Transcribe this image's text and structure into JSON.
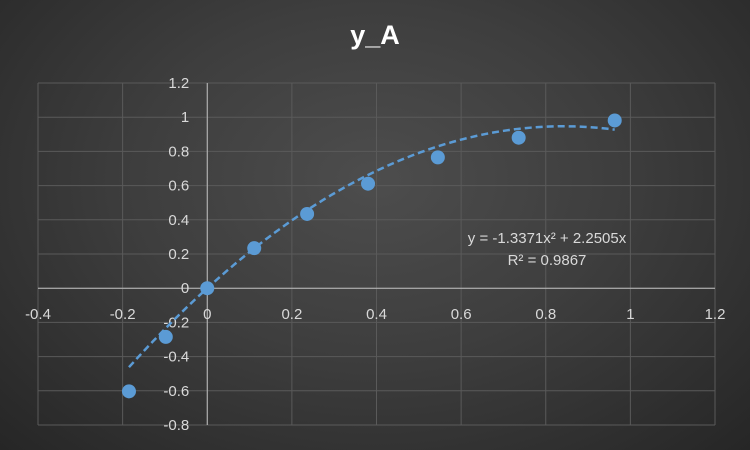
{
  "chart_data": {
    "type": "scatter",
    "title": "y_A",
    "xlabel": "",
    "ylabel": "",
    "xlim": [
      -0.4,
      1.2
    ],
    "ylim": [
      -0.8,
      1.2
    ],
    "x_ticks": [
      -0.4,
      -0.2,
      0,
      0.2,
      0.4,
      0.6,
      0.8,
      1,
      1.2
    ],
    "y_ticks": [
      -0.8,
      -0.6,
      -0.4,
      -0.2,
      0,
      0.2,
      0.4,
      0.6,
      0.8,
      1,
      1.2
    ],
    "x_tick_labels": [
      "-0.4",
      "-0.2",
      "0",
      "0.2",
      "0.4",
      "0.6",
      "0.8",
      "1",
      "1.2"
    ],
    "y_tick_labels": [
      "-0.8",
      "-0.6",
      "-0.4",
      "-0.2",
      "0",
      "0.2",
      "0.4",
      "0.6",
      "0.8",
      "1",
      "1.2"
    ],
    "grid": true,
    "legend": "none",
    "series": [
      {
        "x": [
          -0.185,
          -0.098,
          0.0,
          0.111,
          0.236,
          0.38,
          0.545,
          0.736,
          0.963
        ],
        "y": [
          -0.603,
          -0.285,
          0.0,
          0.234,
          0.434,
          0.611,
          0.765,
          0.88,
          0.981
        ],
        "color": "#5b9bd5"
      }
    ],
    "trendline": {
      "type": "polynomial",
      "order": 2,
      "coefficients": {
        "a": -1.3371,
        "b": 2.2505,
        "c": 0
      },
      "x_range": [
        -0.185,
        0.963
      ],
      "style": "dashed",
      "color": "#5b9bd5",
      "equation_label": "y = -1.3371x² + 2.2505x",
      "r2_label": "R² = 0.9867"
    },
    "colors": {
      "gridline": "#5a5a5a",
      "axis": "#bfbfbf",
      "text": "#d9d9d9",
      "title": "#ffffff"
    }
  }
}
